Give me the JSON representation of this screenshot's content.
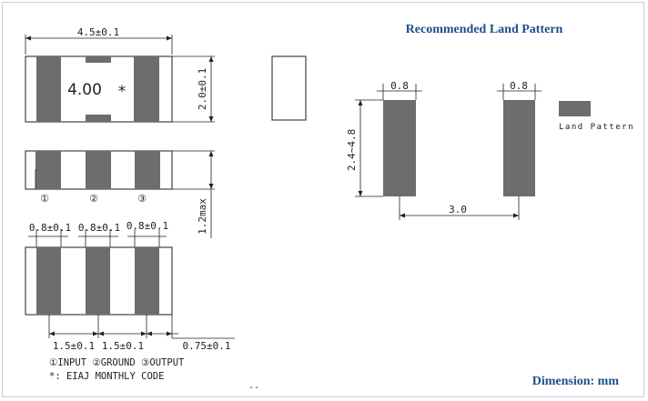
{
  "top_view": {
    "width_dim": "4.5±0.1",
    "height_dim": "2.0±0.1",
    "marking_value": "4.00",
    "marking_symbol": "*"
  },
  "front_view": {
    "terminal_labels": [
      "①",
      "②",
      "③"
    ],
    "height_dim": "1.2max"
  },
  "bottom_view": {
    "pad_width_dims": [
      "0.8±0.1",
      "0.8±0.1",
      "0.8±0.1"
    ],
    "pitch_dims": [
      "1.5±0.1",
      "1.5±0.1"
    ],
    "edge_dim": "0.75±0.1"
  },
  "notes": {
    "pin_legend": "①INPUT ②GROUND ③OUTPUT",
    "marking_note": "*: EIAJ MONTHLY CODE"
  },
  "land_pattern": {
    "title": "Recommended Land Pattern",
    "pad_width_left": "0.8",
    "pad_width_right": "0.8",
    "pad_length": "2.4~4.8",
    "pad_spacing": "3.0",
    "legend_label": "Land Pattern"
  },
  "footer": {
    "dimension_note": "Dimension: mm",
    "small_mark": "--"
  },
  "colors": {
    "pad": "#6d6d6d",
    "heading": "#1f4e8a"
  }
}
